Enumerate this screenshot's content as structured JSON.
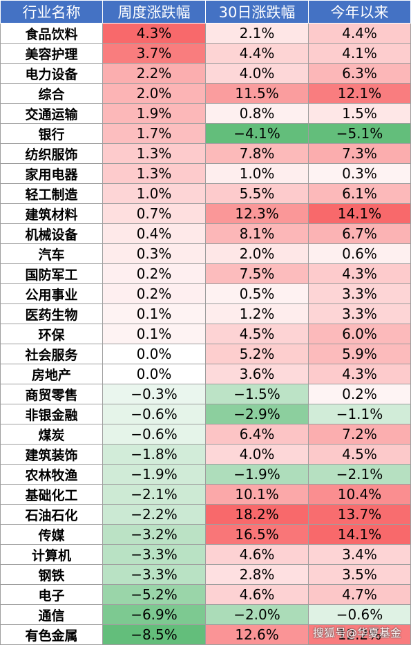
{
  "table": {
    "headers": [
      "行业名称",
      "周度涨跌幅",
      "30日涨跌幅",
      "今年以来"
    ],
    "rows": [
      [
        "食品饮料",
        "4.3%",
        "2.1%",
        "4.4%"
      ],
      [
        "美容护理",
        "3.7%",
        "4.4%",
        "4.1%"
      ],
      [
        "电力设备",
        "2.2%",
        "4.0%",
        "6.3%"
      ],
      [
        "综合",
        "2.0%",
        "11.5%",
        "12.1%"
      ],
      [
        "交通运输",
        "1.9%",
        "0.8%",
        "1.5%"
      ],
      [
        "银行",
        "1.7%",
        "−4.1%",
        "−5.1%"
      ],
      [
        "纺织服饰",
        "1.3%",
        "7.8%",
        "7.3%"
      ],
      [
        "家用电器",
        "1.3%",
        "1.0%",
        "0.3%"
      ],
      [
        "轻工制造",
        "1.0%",
        "5.5%",
        "6.1%"
      ],
      [
        "建筑材料",
        "0.7%",
        "12.3%",
        "14.1%"
      ],
      [
        "机械设备",
        "0.4%",
        "8.1%",
        "6.7%"
      ],
      [
        "汽车",
        "0.3%",
        "2.0%",
        "0.6%"
      ],
      [
        "国防军工",
        "0.2%",
        "7.5%",
        "4.3%"
      ],
      [
        "公用事业",
        "0.2%",
        "0.5%",
        "3.3%"
      ],
      [
        "医药生物",
        "0.1%",
        "1.2%",
        "3.3%"
      ],
      [
        "环保",
        "0.1%",
        "4.5%",
        "6.0%"
      ],
      [
        "社会服务",
        "0.0%",
        "5.2%",
        "5.9%"
      ],
      [
        "房地产",
        "0.0%",
        "3.6%",
        "4.3%"
      ],
      [
        "商贸零售",
        "−0.3%",
        "−1.5%",
        "0.2%"
      ],
      [
        "非银金融",
        "−0.6%",
        "−2.9%",
        "−1.1%"
      ],
      [
        "煤炭",
        "−0.6%",
        "6.4%",
        "7.2%"
      ],
      [
        "建筑装饰",
        "−1.8%",
        "4.0%",
        "4.5%"
      ],
      [
        "农林牧渔",
        "−1.9%",
        "−1.9%",
        "−2.1%"
      ],
      [
        "基础化工",
        "−2.1%",
        "10.1%",
        "10.4%"
      ],
      [
        "石油石化",
        "−2.2%",
        "18.2%",
        "13.7%"
      ],
      [
        "传媒",
        "−3.2%",
        "16.5%",
        "14.1%"
      ],
      [
        "计算机",
        "−3.3%",
        "4.6%",
        "3.4%"
      ],
      [
        "钢铁",
        "−3.3%",
        "2.8%",
        "3.5%"
      ],
      [
        "电子",
        "−5.2%",
        "4.6%",
        "4.7%"
      ],
      [
        "通信",
        "−6.9%",
        "−2.0%",
        "−0.6%"
      ],
      [
        "有色金属",
        "−8.5%",
        "12.6%",
        "12.2%"
      ]
    ]
  },
  "colors": {
    "header_bg": "#4472c4",
    "header_text": "#ffffff",
    "positive": "#f8696b",
    "negative": "#63be7b",
    "border": "#9e9e9e"
  },
  "watermark": "搜狐号@华夏基金"
}
